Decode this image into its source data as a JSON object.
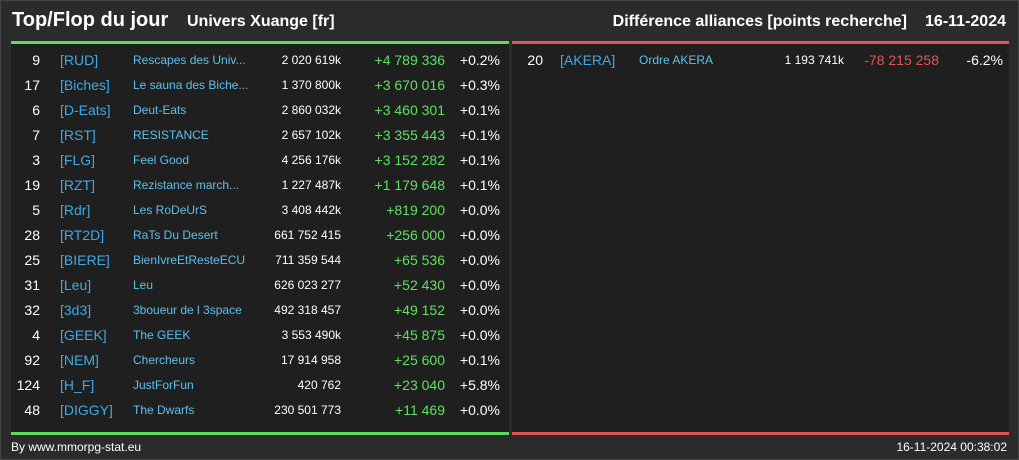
{
  "header": {
    "title": "Top/Flop du jour",
    "universe": "Univers Xuange [fr]",
    "category": "Différence alliances [points recherche]",
    "date": "16-11-2024"
  },
  "colors": {
    "top_accent": "#5cdb5c",
    "flop_accent": "#e05555",
    "tag": "#3fa9e6"
  },
  "top": [
    {
      "rank": "9",
      "tag": "[RUD]",
      "name": "Rescapes des Univ...",
      "points": "2 020 619k",
      "diff": "+4 789 336",
      "pct": "+0.2%"
    },
    {
      "rank": "17",
      "tag": "[Biches]",
      "name": "Le sauna des Biche...",
      "points": "1 370 800k",
      "diff": "+3 670 016",
      "pct": "+0.3%"
    },
    {
      "rank": "6",
      "tag": "[D-Eats]",
      "name": "Deut-Eats",
      "points": "2 860 032k",
      "diff": "+3 460 301",
      "pct": "+0.1%"
    },
    {
      "rank": "7",
      "tag": "[RST]",
      "name": "RESISTANCE",
      "points": "2 657 102k",
      "diff": "+3 355 443",
      "pct": "+0.1%"
    },
    {
      "rank": "3",
      "tag": "[FLG]",
      "name": "Feel Good",
      "points": "4 256 176k",
      "diff": "+3 152 282",
      "pct": "+0.1%"
    },
    {
      "rank": "19",
      "tag": "[RZT]",
      "name": "Rezistance march...",
      "points": "1 227 487k",
      "diff": "+1 179 648",
      "pct": "+0.1%"
    },
    {
      "rank": "5",
      "tag": "[Rdr]",
      "name": "Les RoDeUrS",
      "points": "3 408 442k",
      "diff": "+819 200",
      "pct": "+0.0%"
    },
    {
      "rank": "28",
      "tag": "[RT2D]",
      "name": "RaTs Du Desert",
      "points": "661 752 415",
      "diff": "+256 000",
      "pct": "+0.0%"
    },
    {
      "rank": "25",
      "tag": "[BIERE]",
      "name": "BienIvreEtResteECU",
      "points": "711 359 544",
      "diff": "+65 536",
      "pct": "+0.0%"
    },
    {
      "rank": "31",
      "tag": "[Leu]",
      "name": "Leu",
      "points": "626 023 277",
      "diff": "+52 430",
      "pct": "+0.0%"
    },
    {
      "rank": "32",
      "tag": "[3d3]",
      "name": "3boueur de l 3space",
      "points": "492 318 457",
      "diff": "+49 152",
      "pct": "+0.0%"
    },
    {
      "rank": "4",
      "tag": "[GEEK]",
      "name": "The GEEK",
      "points": "3 553 490k",
      "diff": "+45 875",
      "pct": "+0.0%"
    },
    {
      "rank": "92",
      "tag": "[NEM]",
      "name": "Chercheurs",
      "points": "17 914 958",
      "diff": "+25 600",
      "pct": "+0.1%"
    },
    {
      "rank": "124",
      "tag": "[H_F]",
      "name": "JustForFun",
      "points": "420 762",
      "diff": "+23 040",
      "pct": "+5.8%"
    },
    {
      "rank": "48",
      "tag": "[DIGGY]",
      "name": "The Dwarfs",
      "points": "230 501 773",
      "diff": "+11 469",
      "pct": "+0.0%"
    }
  ],
  "flop": [
    {
      "rank": "20",
      "tag": "[AKERA]",
      "name": "Ordre AKERA",
      "points": "1 193 741k",
      "diff": "-78 215 258",
      "pct": "-6.2%"
    }
  ],
  "footer": {
    "credit": "By www.mmorpg-stat.eu",
    "timestamp": "16-11-2024 00:38:02"
  }
}
